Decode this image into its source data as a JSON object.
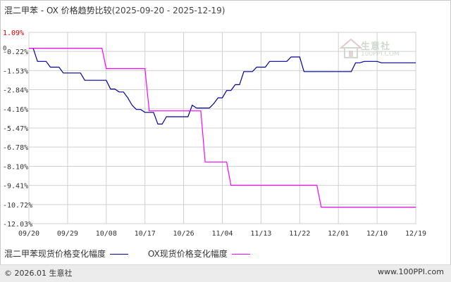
{
  "title": "混二甲苯 - OX 价格趋势比较",
  "subtitle": "(2025-09-20 - 2025-12-19)",
  "footer": {
    "left": "© 2026.01 生意社",
    "right": "www.100PPI.com"
  },
  "logo": {
    "name": "生意社",
    "url": "100PPI.COM",
    "icon": "house-logo-icon"
  },
  "chart_data": {
    "type": "line",
    "title": "混二甲苯 - OX 价格趋势比较",
    "subtitle": "(2025-09-20 - 2025-12-19)",
    "xlabel": "",
    "ylabel": "",
    "x_tick_labels": [
      "09/20",
      "09/29",
      "10/08",
      "10/17",
      "10/26",
      "11/04",
      "11/13",
      "11/22",
      "12/01",
      "12/10",
      "12/19"
    ],
    "x_tick_days": [
      0,
      9,
      18,
      27,
      36,
      45,
      54,
      63,
      72,
      81,
      90
    ],
    "y_tick_labels": [
      "1.09%",
      "-0.22%",
      "-1.53%",
      "-2.84%",
      "-4.16%",
      "-5.47%",
      "-6.78%",
      "-8.10%",
      "-9.41%",
      "-10.72%",
      "-12.03%"
    ],
    "y_ticks": [
      1.09,
      -0.22,
      -1.53,
      -2.84,
      -4.16,
      -5.47,
      -6.78,
      -8.1,
      -9.41,
      -10.72,
      -12.03
    ],
    "zero_label": "0",
    "ylim": [
      -12.03,
      1.09
    ],
    "xlim": [
      "2025-09-20",
      "2025-12-19"
    ],
    "grid": true,
    "legend_position": "bottom-left",
    "series": [
      {
        "name": "混二甲苯现货价格变化幅度",
        "color": "#000099",
        "points": [
          [
            "2025-09-20",
            0
          ],
          [
            "2025-09-21",
            0
          ],
          [
            "2025-09-22",
            -0.9
          ],
          [
            "2025-09-24",
            -0.9
          ],
          [
            "2025-09-25",
            -1.3
          ],
          [
            "2025-09-27",
            -1.3
          ],
          [
            "2025-09-28",
            -1.7
          ],
          [
            "2025-10-02",
            -1.7
          ],
          [
            "2025-10-03",
            -2.2
          ],
          [
            "2025-10-08",
            -2.2
          ],
          [
            "2025-10-09",
            -2.8
          ],
          [
            "2025-10-10",
            -2.8
          ],
          [
            "2025-10-11",
            -3.0
          ],
          [
            "2025-10-12",
            -3.0
          ],
          [
            "2025-10-13",
            -3.4
          ],
          [
            "2025-10-14",
            -3.9
          ],
          [
            "2025-10-15",
            -4.2
          ],
          [
            "2025-10-16",
            -4.2
          ],
          [
            "2025-10-17",
            -4.4
          ],
          [
            "2025-10-19",
            -4.4
          ],
          [
            "2025-10-20",
            -5.2
          ],
          [
            "2025-10-21",
            -5.2
          ],
          [
            "2025-10-22",
            -4.7
          ],
          [
            "2025-10-27",
            -4.7
          ],
          [
            "2025-10-28",
            -3.9
          ],
          [
            "2025-10-29",
            -4.1
          ],
          [
            "2025-11-01",
            -4.1
          ],
          [
            "2025-11-02",
            -3.8
          ],
          [
            "2025-11-03",
            -3.4
          ],
          [
            "2025-11-04",
            -3.4
          ],
          [
            "2025-11-05",
            -2.9
          ],
          [
            "2025-11-06",
            -2.9
          ],
          [
            "2025-11-07",
            -2.5
          ],
          [
            "2025-11-08",
            -2.5
          ],
          [
            "2025-11-09",
            -1.6
          ],
          [
            "2025-11-11",
            -1.6
          ],
          [
            "2025-11-12",
            -1.3
          ],
          [
            "2025-11-14",
            -1.3
          ],
          [
            "2025-11-15",
            -0.9
          ],
          [
            "2025-11-19",
            -0.9
          ],
          [
            "2025-11-20",
            -0.6
          ],
          [
            "2025-11-22",
            -0.6
          ],
          [
            "2025-11-23",
            -1.6
          ],
          [
            "2025-12-04",
            -1.6
          ],
          [
            "2025-12-05",
            -1.0
          ],
          [
            "2025-12-06",
            -1.0
          ],
          [
            "2025-12-07",
            -0.9
          ],
          [
            "2025-12-10",
            -0.9
          ],
          [
            "2025-12-11",
            -1.0
          ],
          [
            "2025-12-19",
            -1.0
          ]
        ]
      },
      {
        "name": "OX现货价格变化幅度",
        "color": "#ff00ff",
        "points": [
          [
            "2025-09-20",
            0
          ],
          [
            "2025-10-07",
            0
          ],
          [
            "2025-10-08",
            -1.4
          ],
          [
            "2025-10-17",
            -1.4
          ],
          [
            "2025-10-18",
            -4.3
          ],
          [
            "2025-10-30",
            -4.3
          ],
          [
            "2025-10-31",
            -7.8
          ],
          [
            "2025-11-05",
            -7.8
          ],
          [
            "2025-11-06",
            -9.4
          ],
          [
            "2025-11-26",
            -9.4
          ],
          [
            "2025-11-27",
            -10.9
          ],
          [
            "2025-12-19",
            -10.9
          ]
        ]
      }
    ]
  }
}
